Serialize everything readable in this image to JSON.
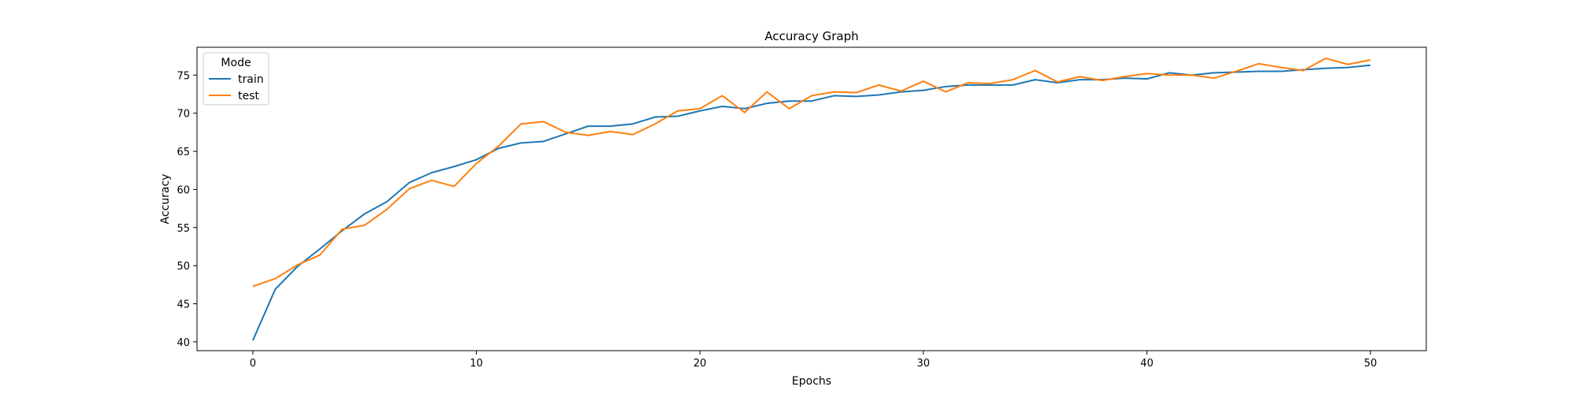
{
  "chart_data": {
    "type": "line",
    "title": "Accuracy Graph",
    "xlabel": "Epochs",
    "ylabel": "Accuracy",
    "xlim": [
      -2.5,
      52.5
    ],
    "ylim": [
      38.85,
      78.65
    ],
    "xticks": [
      0,
      10,
      20,
      30,
      40,
      50
    ],
    "yticks": [
      40,
      45,
      50,
      55,
      60,
      65,
      70,
      75
    ],
    "grid": false,
    "legend": {
      "title": "Mode",
      "placement": "top-left"
    },
    "x": [
      0,
      1,
      2,
      3,
      4,
      5,
      6,
      7,
      8,
      9,
      10,
      11,
      12,
      13,
      14,
      15,
      16,
      17,
      18,
      19,
      20,
      21,
      22,
      23,
      24,
      25,
      26,
      27,
      28,
      29,
      30,
      31,
      32,
      33,
      34,
      35,
      36,
      37,
      38,
      39,
      40,
      41,
      42,
      43,
      44,
      45,
      46,
      47,
      48,
      49,
      50
    ],
    "series": [
      {
        "name": "train",
        "color": "#1f77b4",
        "values": [
          40.2,
          46.9,
          49.9,
          52.2,
          54.6,
          56.8,
          58.4,
          60.9,
          62.2,
          63.0,
          63.9,
          65.4,
          66.1,
          66.3,
          67.3,
          68.3,
          68.3,
          68.6,
          69.5,
          69.6,
          70.3,
          70.9,
          70.6,
          71.3,
          71.6,
          71.6,
          72.3,
          72.2,
          72.4,
          72.8,
          73.0,
          73.5,
          73.7,
          73.7,
          73.7,
          74.4,
          74.0,
          74.4,
          74.4,
          74.6,
          74.5,
          75.3,
          75.0,
          75.3,
          75.4,
          75.5,
          75.5,
          75.7,
          75.9,
          76.0,
          76.3
        ]
      },
      {
        "name": "test",
        "color": "#ff7f0e",
        "values": [
          47.3,
          48.3,
          50.1,
          51.4,
          54.8,
          55.3,
          57.4,
          60.1,
          61.2,
          60.4,
          63.4,
          65.7,
          68.6,
          68.9,
          67.5,
          67.1,
          67.6,
          67.2,
          68.6,
          70.3,
          70.6,
          72.3,
          70.1,
          72.8,
          70.6,
          72.3,
          72.8,
          72.7,
          73.7,
          72.9,
          74.2,
          72.8,
          74.0,
          73.9,
          74.4,
          75.6,
          74.1,
          74.8,
          74.3,
          74.8,
          75.2,
          75.0,
          75.0,
          74.6,
          75.5,
          76.5,
          76.0,
          75.6,
          77.2,
          76.4,
          77.0
        ]
      }
    ]
  }
}
